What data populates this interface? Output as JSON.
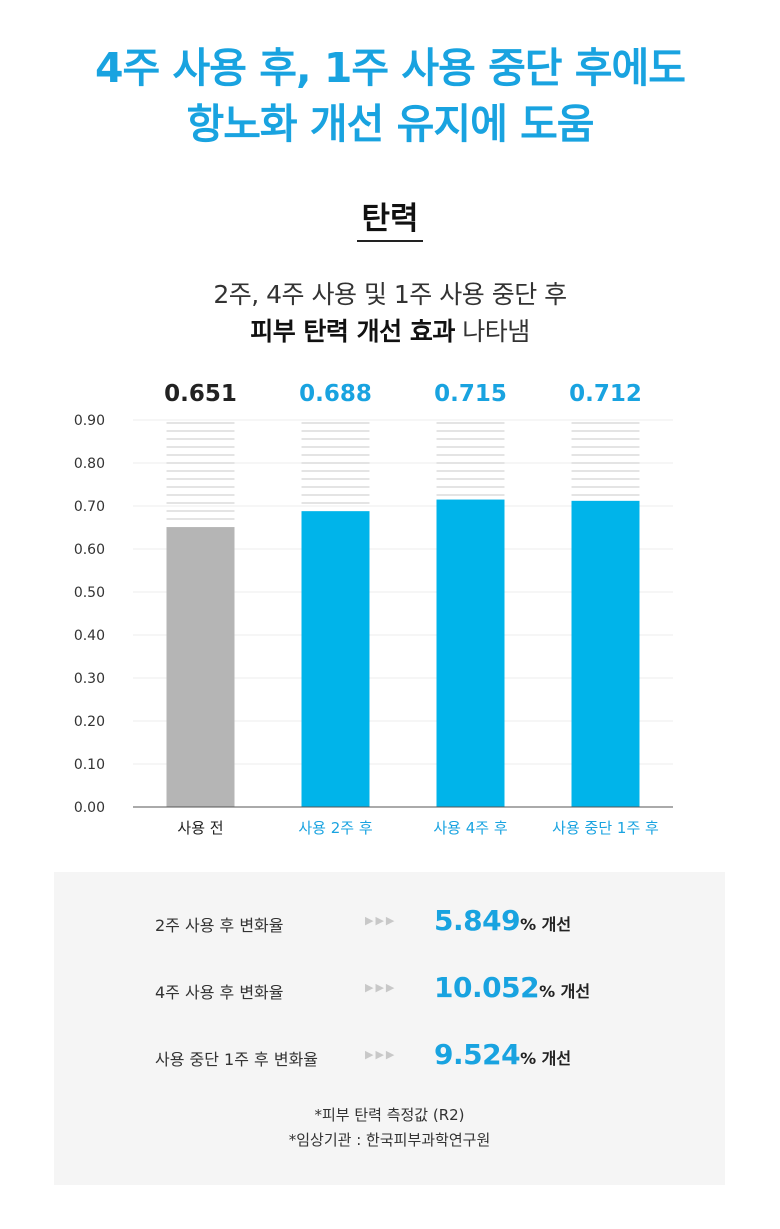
{
  "headline": {
    "line1": "4주 사용 후, 1주 사용 중단 후에도",
    "line2": "항노화 개선 유지에 도움"
  },
  "section_title": "탄력",
  "subtitle": {
    "line1": "2주, 4주 사용 및 1주 사용 중단 후",
    "line2_bold": "피부 탄력 개선 효과",
    "line2_rest": " 나타냄"
  },
  "chart_data": {
    "type": "bar",
    "categories": [
      "사용 전",
      "사용 2주 후",
      "사용 4주 후",
      "사용 중단 1주 후"
    ],
    "values": [
      0.651,
      0.688,
      0.715,
      0.712
    ],
    "value_labels": [
      "0.651",
      "0.688",
      "0.715",
      "0.712"
    ],
    "yticks": [
      "0.00",
      "0.10",
      "0.20",
      "0.30",
      "0.40",
      "0.50",
      "0.60",
      "0.70",
      "0.80",
      "0.90"
    ],
    "ylim": [
      0,
      0.9
    ],
    "grid": true,
    "colors": {
      "baseline": "#b5b5b5",
      "treated": "#00b4ea",
      "baseline_label": "#222222",
      "treated_label": "#19a3e0",
      "stripe": "#e4e4e4",
      "grid": "#eeeeee",
      "axis": "#555555"
    }
  },
  "summary": {
    "rows": [
      {
        "label": "2주 사용 후 변화율",
        "arrows": "▶▶▶",
        "value": "5.849",
        "suffix": "% 개선"
      },
      {
        "label": "4주 사용 후 변화율",
        "arrows": "▶▶▶",
        "value": "10.052",
        "suffix": "% 개선"
      },
      {
        "label": "사용 중단 1주 후 변화율",
        "arrows": "▶▶▶",
        "value": "9.524",
        "suffix": "% 개선"
      }
    ],
    "notes": [
      "*피부 탄력 측정값 (R2)",
      "*임상기관 : 한국피부과학연구원"
    ]
  }
}
